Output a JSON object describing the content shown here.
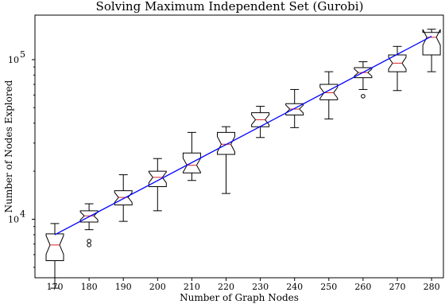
{
  "chart_data": {
    "type": "box",
    "title": "Solving Maximum Independent Set (Gurobi)",
    "xlabel": "Number of Graph Nodes",
    "ylabel": "Number of Nodes Explored",
    "yscale": "log",
    "ylim": [
      4300,
      190000
    ],
    "grid": false,
    "categories": [
      "170",
      "180",
      "190",
      "200",
      "210",
      "220",
      "230",
      "240",
      "250",
      "260",
      "270",
      "280"
    ],
    "ytick_labels": [
      {
        "value": 10000,
        "base": "10",
        "exp": "4"
      },
      {
        "value": 100000,
        "base": "10",
        "exp": "5"
      }
    ],
    "boxes": [
      {
        "x": "170",
        "whislo": 3700,
        "q1": 5500,
        "med": 6900,
        "q3": 8100,
        "whishi": 9400,
        "fliers": []
      },
      {
        "x": "180",
        "whislo": 8600,
        "q1": 9600,
        "med": 10500,
        "q3": 11300,
        "whishi": 12500,
        "fliers": [
          6900,
          7300
        ]
      },
      {
        "x": "190",
        "whislo": 9700,
        "q1": 12300,
        "med": 13700,
        "q3": 15100,
        "whishi": 19000,
        "fliers": []
      },
      {
        "x": "200",
        "whislo": 11300,
        "q1": 16000,
        "med": 18300,
        "q3": 20000,
        "whishi": 24000,
        "fliers": []
      },
      {
        "x": "210",
        "whislo": 17500,
        "q1": 19500,
        "med": 21800,
        "q3": 26000,
        "whishi": 35000,
        "fliers": []
      },
      {
        "x": "220",
        "whislo": 14500,
        "q1": 25500,
        "med": 29500,
        "q3": 35000,
        "whishi": 38000,
        "fliers": []
      },
      {
        "x": "230",
        "whislo": 32500,
        "q1": 38000,
        "med": 42000,
        "q3": 46500,
        "whishi": 51000,
        "fliers": []
      },
      {
        "x": "240",
        "whislo": 37500,
        "q1": 45000,
        "med": 49000,
        "q3": 53000,
        "whishi": 65000,
        "fliers": []
      },
      {
        "x": "250",
        "whislo": 42500,
        "q1": 56000,
        "med": 62000,
        "q3": 70000,
        "whishi": 84000,
        "fliers": []
      },
      {
        "x": "260",
        "whislo": 65000,
        "q1": 77000,
        "med": 83000,
        "q3": 89000,
        "whishi": 97000,
        "fliers": [
          59000
        ]
      },
      {
        "x": "270",
        "whislo": 64000,
        "q1": 84000,
        "med": 95000,
        "q3": 107000,
        "whishi": 121000,
        "fliers": []
      },
      {
        "x": "280",
        "whislo": 84000,
        "q1": 107000,
        "med": 138000,
        "q3": 148000,
        "whishi": 155000,
        "fliers": []
      }
    ],
    "trend_line": {
      "x": [
        "170",
        "280"
      ],
      "y": [
        8000,
        140000
      ]
    },
    "colors": {
      "box": "#000000",
      "median": "#d62728",
      "trend": "#0000ff"
    }
  }
}
